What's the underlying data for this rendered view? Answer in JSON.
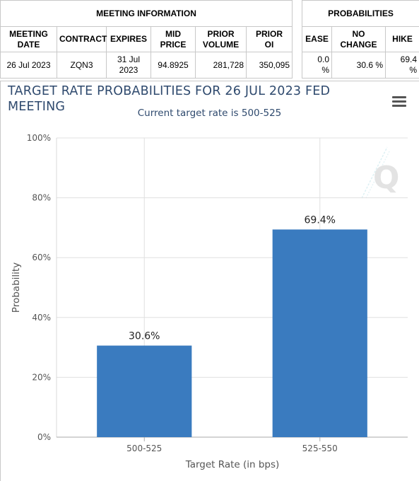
{
  "meeting_info": {
    "header": "MEETING INFORMATION",
    "columns": [
      {
        "line1": "MEETING",
        "line2": "DATE"
      },
      {
        "line1": "CONTRACT",
        "line2": ""
      },
      {
        "line1": "EXPIRES",
        "line2": ""
      },
      {
        "line1": "MID",
        "line2": "PRICE"
      },
      {
        "line1": "PRIOR",
        "line2": "VOLUME"
      },
      {
        "line1": "PRIOR",
        "line2": "OI"
      }
    ],
    "row": {
      "meeting_date": "26 Jul 2023",
      "contract": "ZQN3",
      "expires_line1": "31 Jul",
      "expires_line2": "2023",
      "mid_price": "94.8925",
      "prior_volume": "281,728",
      "prior_oi": "350,095"
    }
  },
  "probabilities": {
    "header": "PROBABILITIES",
    "columns": [
      {
        "line1": "EASE",
        "line2": ""
      },
      {
        "line1": "NO",
        "line2": "CHANGE"
      },
      {
        "line1": "HIKE",
        "line2": ""
      }
    ],
    "row": {
      "ease_line1": "0.0",
      "ease_line2": "%",
      "no_change": "30.6 %",
      "hike_line1": "69.4",
      "hike_line2": "%"
    }
  },
  "colors": {
    "bar": "#3a7bbf",
    "title": "#2f4a6e",
    "grid": "#e0e0e0"
  },
  "chart_data": {
    "type": "bar",
    "title": "TARGET RATE PROBABILITIES FOR 26 JUL 2023 FED MEETING",
    "subtitle": "Current target rate is 500-525",
    "xlabel": "Target Rate (in bps)",
    "ylabel": "Probability",
    "categories": [
      "500-525",
      "525-550"
    ],
    "values": [
      30.6,
      69.4
    ],
    "data_labels": [
      "30.6%",
      "69.4%"
    ],
    "ylim": [
      0,
      100
    ],
    "yticks": [
      0,
      20,
      40,
      60,
      80,
      100
    ],
    "ytick_labels": [
      "0%",
      "20%",
      "40%",
      "60%",
      "80%",
      "100%"
    ],
    "grid": true,
    "legend": "none"
  }
}
